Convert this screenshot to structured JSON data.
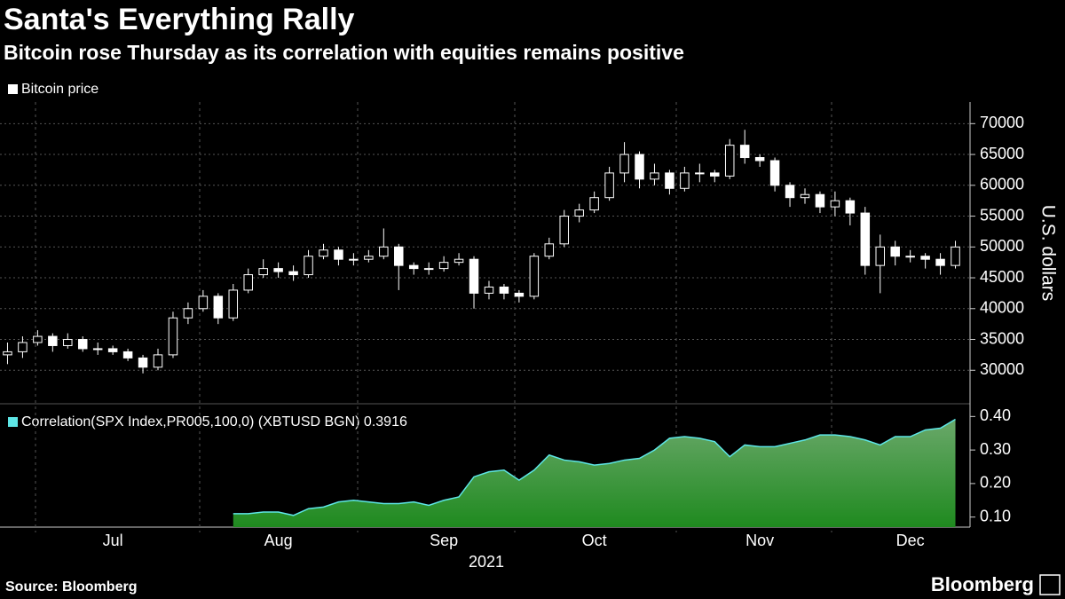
{
  "source": "Source: Bloomberg",
  "logo": "Bloomberg",
  "chart_data": [
    {
      "type": "candlestick",
      "title": "Santa's Everything Rally",
      "subtitle": "Bitcoin rose Thursday as its correlation with equities remains positive",
      "ylabel": "U.S. dollars",
      "ylim": [
        25000,
        73500
      ],
      "yticks": [
        30000,
        35000,
        40000,
        45000,
        50000,
        55000,
        60000,
        65000,
        70000
      ],
      "grid": true,
      "series": [
        {
          "name": "Bitcoin price",
          "color": "#ffffff",
          "open": [
            32500,
            33000,
            34500,
            35500,
            34000,
            35000,
            33500,
            33500,
            33000,
            32000,
            30500,
            32500,
            38500,
            40000,
            42000,
            38500,
            43000,
            45500,
            46500,
            46000,
            45500,
            48500,
            49500,
            48000,
            48000,
            48500,
            50000,
            47000,
            46500,
            46500,
            47500,
            48000,
            42500,
            43500,
            42500,
            42000,
            48500,
            50500,
            55000,
            56000,
            58000,
            62000,
            65000,
            61000,
            62000,
            59500,
            62000,
            62000,
            61500,
            66500,
            64500,
            64000,
            60000,
            58000,
            58500,
            56500,
            57500,
            55500,
            47000,
            50000,
            48500,
            48500,
            48000,
            47000
          ],
          "high": [
            34500,
            35500,
            36500,
            36000,
            36000,
            35500,
            34500,
            34000,
            33500,
            32500,
            33500,
            39500,
            41000,
            43000,
            42500,
            44000,
            46500,
            48000,
            47500,
            47000,
            49500,
            50500,
            50000,
            49000,
            49500,
            53000,
            50500,
            47500,
            47500,
            48500,
            49000,
            48500,
            44500,
            44000,
            43000,
            49000,
            51500,
            56000,
            57000,
            59000,
            63000,
            67000,
            65500,
            63500,
            62500,
            63000,
            63500,
            62500,
            67500,
            69000,
            65000,
            64500,
            60500,
            59500,
            59000,
            59000,
            58000,
            56500,
            52000,
            51000,
            49500,
            49000,
            49000,
            51000
          ],
          "low": [
            31000,
            32000,
            34000,
            33000,
            33500,
            33000,
            32500,
            32500,
            31500,
            29500,
            30000,
            32000,
            37500,
            39500,
            37500,
            38000,
            42500,
            45000,
            45000,
            44500,
            45000,
            48000,
            47000,
            47000,
            47500,
            48000,
            43000,
            45500,
            45500,
            46000,
            47000,
            40000,
            41500,
            41500,
            41000,
            41500,
            48000,
            50000,
            54000,
            55500,
            57500,
            60500,
            59500,
            60000,
            58500,
            59000,
            60500,
            60500,
            61000,
            63500,
            63000,
            59000,
            56500,
            57000,
            55500,
            55000,
            53500,
            45500,
            42500,
            47000,
            47500,
            46500,
            45500,
            46500
          ],
          "close": [
            33000,
            34500,
            35500,
            34000,
            35000,
            33500,
            33500,
            33000,
            32000,
            30500,
            32500,
            38500,
            40000,
            42000,
            38500,
            43000,
            45500,
            46500,
            46000,
            45500,
            48500,
            49500,
            48000,
            48000,
            48500,
            50000,
            47000,
            46500,
            46500,
            47500,
            48000,
            42500,
            43500,
            42500,
            42000,
            48500,
            50500,
            55000,
            56000,
            58000,
            62000,
            65000,
            61000,
            62000,
            59500,
            62000,
            62000,
            61500,
            66500,
            64500,
            64000,
            60000,
            58000,
            58500,
            56500,
            57500,
            55500,
            47000,
            50000,
            48500,
            48500,
            48000,
            47000,
            50000
          ]
        }
      ]
    },
    {
      "type": "area",
      "xlabel": "2021",
      "categories": [
        null,
        null,
        null,
        null,
        null,
        null,
        null,
        "Jul",
        null,
        null,
        null,
        null,
        null,
        null,
        null,
        null,
        null,
        null,
        "Aug",
        null,
        null,
        null,
        null,
        null,
        null,
        null,
        null,
        null,
        null,
        "Sep",
        null,
        null,
        null,
        null,
        null,
        null,
        null,
        null,
        null,
        "Oct",
        null,
        null,
        null,
        null,
        null,
        null,
        null,
        null,
        null,
        null,
        "Nov",
        null,
        null,
        null,
        null,
        null,
        null,
        null,
        null,
        null,
        "Dec",
        null,
        null,
        null
      ],
      "ylim": [
        0.07,
        0.43
      ],
      "yticks": [
        {
          "value": 0.1,
          "label": "0.10"
        },
        {
          "value": 0.2,
          "label": "0.20"
        },
        {
          "value": 0.3,
          "label": "0.30"
        },
        {
          "value": 0.4,
          "label": "0.40"
        }
      ],
      "series": [
        {
          "name": "Correlation(SPX Index,PR005,100,0) (XBTUSD BGN) 0.3916",
          "color": "#5ee6e6",
          "fill": "#1f8a1f",
          "values": [
            null,
            null,
            null,
            null,
            null,
            null,
            null,
            null,
            null,
            null,
            null,
            null,
            null,
            null,
            null,
            0.11,
            0.11,
            0.115,
            0.115,
            0.105,
            0.125,
            0.13,
            0.145,
            0.15,
            0.145,
            0.14,
            0.14,
            0.145,
            0.135,
            0.15,
            0.16,
            0.22,
            0.235,
            0.24,
            0.21,
            0.24,
            0.285,
            0.27,
            0.265,
            0.255,
            0.26,
            0.27,
            0.275,
            0.3,
            0.335,
            0.34,
            0.335,
            0.325,
            0.28,
            0.315,
            0.31,
            0.31,
            0.32,
            0.33,
            0.345,
            0.345,
            0.34,
            0.33,
            0.315,
            0.34,
            0.34,
            0.36,
            0.365,
            0.3916
          ]
        }
      ]
    }
  ]
}
